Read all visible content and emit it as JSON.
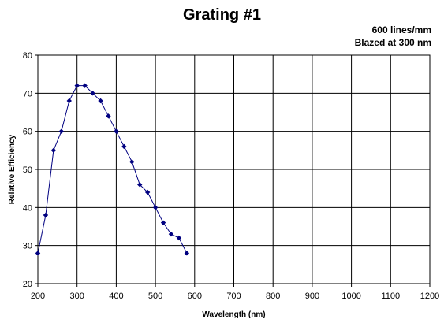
{
  "chart_data": {
    "type": "line",
    "title": "Grating #1",
    "subtitle": [
      "600 lines/mm",
      "Blazed at 300 nm"
    ],
    "xlabel": "Wavelength (nm)",
    "ylabel": "Relative Efficiency",
    "xlim": [
      200,
      1200
    ],
    "ylim": [
      20,
      80
    ],
    "xticks": [
      200,
      300,
      400,
      500,
      600,
      700,
      800,
      900,
      1000,
      1100,
      1200
    ],
    "yticks": [
      20,
      30,
      40,
      50,
      60,
      70,
      80
    ],
    "grid": true,
    "legend": "none",
    "series_color": "#000080",
    "series": [
      {
        "x": [
          200,
          220,
          240,
          260,
          280,
          300,
          320,
          340,
          360,
          380,
          400,
          420,
          440,
          460,
          480,
          500,
          520,
          540,
          560,
          580
        ],
        "y": [
          28,
          38,
          55,
          60,
          68,
          72,
          72,
          70,
          68,
          64,
          60,
          56,
          52,
          46,
          44,
          40,
          36,
          33,
          32,
          28
        ]
      }
    ]
  }
}
